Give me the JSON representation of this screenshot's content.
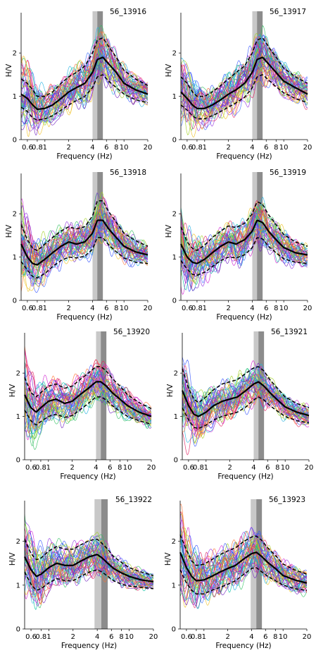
{
  "figure": {
    "panel_count": 8,
    "colors": {
      "individual_curves": [
        "#d020d0",
        "#9030e0",
        "#3050ff",
        "#20b0e0",
        "#30c060",
        "#a0d020",
        "#f0c020",
        "#ff7030",
        "#e02060",
        "#7020c0",
        "#00c0a0",
        "#4070ff"
      ],
      "mean_curve": "#000000",
      "std_curves": "#000000",
      "peak_band_outer": "#c8c8c8",
      "peak_band_inner": "#8c8c8c"
    }
  },
  "chart_data": [
    {
      "type": "line",
      "title": "56_13916",
      "xlabel": "Frequency (Hz)",
      "ylabel": "H/V",
      "x_scale": "log",
      "xlim": [
        0.5,
        20
      ],
      "ylim": [
        0,
        2.8
      ],
      "xticks": [
        "0.6",
        "0.8",
        "1",
        "2",
        "4",
        "6",
        "8",
        "10",
        "20"
      ],
      "yticks": [
        "0",
        "1",
        "2"
      ],
      "peak_band_hz": [
        4.0,
        5.4
      ],
      "peak_band_inner_hz": [
        4.6,
        5.4
      ],
      "series": [
        {
          "values": [
            1.05,
            0.95,
            0.8,
            0.7,
            0.72,
            0.8,
            0.95,
            1.1,
            1.2,
            1.3,
            1.55,
            1.85,
            1.9,
            1.75,
            1.55,
            1.3,
            1.15,
            1.05
          ],
          "style": "mean"
        },
        {
          "values": [
            1.4,
            1.3,
            1.15,
            1.0,
            1.0,
            1.1,
            1.3,
            1.45,
            1.55,
            1.7,
            2.0,
            2.3,
            2.35,
            2.15,
            1.9,
            1.6,
            1.4,
            1.25
          ],
          "style": "std-upper"
        },
        {
          "values": [
            0.75,
            0.65,
            0.5,
            0.45,
            0.48,
            0.55,
            0.68,
            0.8,
            0.9,
            1.0,
            1.2,
            1.45,
            1.5,
            1.35,
            1.2,
            1.05,
            0.92,
            0.85
          ],
          "style": "std-lower"
        }
      ]
    },
    {
      "type": "line",
      "title": "56_13917",
      "xlabel": "Frequency (Hz)",
      "ylabel": "H/V",
      "x_scale": "log",
      "xlim": [
        0.5,
        20
      ],
      "ylim": [
        0,
        2.8
      ],
      "xticks": [
        "0.6",
        "0.8",
        "1",
        "2",
        "4",
        "6",
        "8",
        "10",
        "20"
      ],
      "yticks": [
        "0",
        "1",
        "2"
      ],
      "peak_band_hz": [
        4.0,
        5.4
      ],
      "peak_band_inner_hz": [
        4.6,
        5.4
      ],
      "series": [
        {
          "values": [
            1.1,
            0.95,
            0.8,
            0.72,
            0.72,
            0.8,
            0.92,
            1.05,
            1.15,
            1.3,
            1.55,
            1.85,
            1.9,
            1.75,
            1.55,
            1.35,
            1.2,
            1.05
          ],
          "style": "mean"
        },
        {
          "values": [
            1.45,
            1.3,
            1.1,
            1.0,
            1.0,
            1.1,
            1.25,
            1.4,
            1.55,
            1.7,
            2.0,
            2.3,
            2.35,
            2.15,
            1.9,
            1.65,
            1.45,
            1.3
          ],
          "style": "std-upper"
        },
        {
          "values": [
            0.8,
            0.68,
            0.55,
            0.48,
            0.48,
            0.55,
            0.65,
            0.75,
            0.85,
            0.98,
            1.2,
            1.45,
            1.5,
            1.38,
            1.22,
            1.08,
            0.95,
            0.85
          ],
          "style": "std-lower"
        }
      ]
    },
    {
      "type": "line",
      "title": "56_13918",
      "xlabel": "Frequency (Hz)",
      "ylabel": "H/V",
      "x_scale": "log",
      "xlim": [
        0.5,
        20
      ],
      "ylim": [
        0,
        2.8
      ],
      "xticks": [
        "0.6",
        "0.8",
        "1",
        "2",
        "4",
        "6",
        "8",
        "10",
        "20"
      ],
      "yticks": [
        "0",
        "1",
        "2"
      ],
      "peak_band_hz": [
        4.0,
        5.4
      ],
      "peak_band_inner_hz": [
        4.6,
        5.4
      ],
      "series": [
        {
          "values": [
            1.3,
            1.0,
            0.85,
            0.82,
            0.95,
            1.1,
            1.25,
            1.35,
            1.3,
            1.35,
            1.55,
            1.85,
            1.85,
            1.65,
            1.45,
            1.25,
            1.12,
            1.05
          ],
          "style": "mean"
        },
        {
          "values": [
            1.75,
            1.4,
            1.2,
            1.15,
            1.3,
            1.45,
            1.6,
            1.7,
            1.65,
            1.7,
            1.95,
            2.3,
            2.3,
            2.05,
            1.8,
            1.55,
            1.38,
            1.25
          ],
          "style": "std-upper"
        },
        {
          "values": [
            0.9,
            0.7,
            0.55,
            0.52,
            0.62,
            0.78,
            0.92,
            1.0,
            0.98,
            1.02,
            1.18,
            1.45,
            1.45,
            1.28,
            1.12,
            0.98,
            0.88,
            0.85
          ],
          "style": "std-lower"
        }
      ]
    },
    {
      "type": "line",
      "title": "56_13919",
      "xlabel": "Frequency (Hz)",
      "ylabel": "H/V",
      "x_scale": "log",
      "xlim": [
        0.5,
        20
      ],
      "ylim": [
        0,
        2.8
      ],
      "xticks": [
        "0.6",
        "0.8",
        "1",
        "2",
        "4",
        "6",
        "8",
        "10",
        "20"
      ],
      "yticks": [
        "0",
        "1",
        "2"
      ],
      "peak_band_hz": [
        4.0,
        5.4
      ],
      "peak_band_inner_hz": [
        4.6,
        5.4
      ],
      "series": [
        {
          "values": [
            1.3,
            1.0,
            0.88,
            0.85,
            0.95,
            1.1,
            1.25,
            1.35,
            1.3,
            1.4,
            1.6,
            1.85,
            1.8,
            1.6,
            1.4,
            1.22,
            1.1,
            1.05
          ],
          "style": "mean"
        },
        {
          "values": [
            1.7,
            1.35,
            1.2,
            1.15,
            1.28,
            1.45,
            1.6,
            1.72,
            1.68,
            1.78,
            2.0,
            2.28,
            2.22,
            1.98,
            1.75,
            1.52,
            1.35,
            1.25
          ],
          "style": "std-upper"
        },
        {
          "values": [
            0.92,
            0.72,
            0.6,
            0.58,
            0.65,
            0.78,
            0.92,
            1.0,
            0.98,
            1.05,
            1.22,
            1.45,
            1.42,
            1.25,
            1.1,
            0.96,
            0.88,
            0.85
          ],
          "style": "std-lower"
        }
      ]
    },
    {
      "type": "line",
      "title": "56_13920",
      "xlabel": "Frequency (Hz)",
      "ylabel": "H/V",
      "x_scale": "log",
      "xlim": [
        0.5,
        20
      ],
      "ylim": [
        0,
        2.8
      ],
      "xticks": [
        "0.6",
        "0.8",
        "1",
        "2",
        "4",
        "6",
        "8",
        "10",
        "20"
      ],
      "yticks": [
        "0",
        "1",
        "2"
      ],
      "peak_band_hz": [
        4.0,
        5.4
      ],
      "peak_band_inner_hz": [
        4.6,
        5.4
      ],
      "series": [
        {
          "values": [
            1.5,
            1.2,
            1.1,
            1.2,
            1.35,
            1.4,
            1.3,
            1.35,
            1.5,
            1.65,
            1.8,
            1.8,
            1.7,
            1.55,
            1.4,
            1.25,
            1.1,
            1.0
          ],
          "style": "mean"
        },
        {
          "values": [
            1.9,
            1.55,
            1.45,
            1.55,
            1.7,
            1.75,
            1.65,
            1.7,
            1.85,
            2.0,
            2.15,
            2.15,
            2.05,
            1.88,
            1.7,
            1.5,
            1.32,
            1.18
          ],
          "style": "std-upper"
        },
        {
          "values": [
            1.15,
            0.9,
            0.8,
            0.88,
            1.0,
            1.05,
            0.98,
            1.02,
            1.15,
            1.3,
            1.45,
            1.45,
            1.38,
            1.25,
            1.12,
            1.0,
            0.9,
            0.82
          ],
          "style": "std-lower"
        }
      ]
    },
    {
      "type": "line",
      "title": "56_13921",
      "xlabel": "Frequency (Hz)",
      "ylabel": "H/V",
      "x_scale": "log",
      "xlim": [
        0.5,
        20
      ],
      "ylim": [
        0,
        2.8
      ],
      "xticks": [
        "0.6",
        "0.8",
        "1",
        "2",
        "4",
        "6",
        "8",
        "10",
        "20"
      ],
      "yticks": [
        "0",
        "1",
        "2"
      ],
      "peak_band_hz": [
        4.0,
        5.4
      ],
      "peak_band_inner_hz": [
        4.6,
        5.4
      ],
      "series": [
        {
          "values": [
            1.6,
            1.25,
            1.05,
            1.0,
            1.1,
            1.25,
            1.35,
            1.4,
            1.45,
            1.6,
            1.75,
            1.8,
            1.7,
            1.55,
            1.38,
            1.22,
            1.1,
            1.02
          ],
          "style": "mean"
        },
        {
          "values": [
            2.1,
            1.65,
            1.4,
            1.32,
            1.45,
            1.62,
            1.75,
            1.8,
            1.85,
            2.0,
            2.12,
            2.15,
            2.05,
            1.85,
            1.65,
            1.45,
            1.3,
            1.2
          ],
          "style": "std-upper"
        },
        {
          "values": [
            1.2,
            0.92,
            0.75,
            0.72,
            0.8,
            0.92,
            1.0,
            1.05,
            1.1,
            1.22,
            1.38,
            1.45,
            1.38,
            1.25,
            1.12,
            1.0,
            0.9,
            0.85
          ],
          "style": "std-lower"
        }
      ]
    },
    {
      "type": "line",
      "title": "56_13922",
      "xlabel": "Frequency (Hz)",
      "ylabel": "H/V",
      "x_scale": "log",
      "xlim": [
        0.5,
        20
      ],
      "ylim": [
        0,
        2.8
      ],
      "xticks": [
        "0.6",
        "0.8",
        "1",
        "2",
        "4",
        "6",
        "8",
        "10",
        "20"
      ],
      "yticks": [
        "0",
        "1",
        "2"
      ],
      "peak_band_hz": [
        3.7,
        5.4
      ],
      "peak_band_inner_hz": [
        4.5,
        5.4
      ],
      "series": [
        {
          "values": [
            1.65,
            1.35,
            1.2,
            1.25,
            1.4,
            1.5,
            1.45,
            1.45,
            1.55,
            1.65,
            1.7,
            1.62,
            1.5,
            1.38,
            1.28,
            1.2,
            1.12,
            1.08
          ],
          "style": "mean"
        },
        {
          "values": [
            2.05,
            1.72,
            1.58,
            1.62,
            1.78,
            1.88,
            1.82,
            1.82,
            1.92,
            2.02,
            2.05,
            1.95,
            1.82,
            1.65,
            1.52,
            1.4,
            1.3,
            1.22
          ],
          "style": "std-upper"
        },
        {
          "values": [
            1.3,
            1.02,
            0.88,
            0.92,
            1.05,
            1.15,
            1.1,
            1.1,
            1.2,
            1.3,
            1.35,
            1.3,
            1.2,
            1.1,
            1.02,
            0.98,
            0.95,
            0.92
          ],
          "style": "std-lower"
        }
      ]
    },
    {
      "type": "line",
      "title": "56_13923",
      "xlabel": "Frequency (Hz)",
      "ylabel": "H/V",
      "x_scale": "log",
      "xlim": [
        0.5,
        20
      ],
      "ylim": [
        0,
        2.8
      ],
      "xticks": [
        "0.6",
        "0.8",
        "1",
        "2",
        "4",
        "6",
        "8",
        "10",
        "20"
      ],
      "yticks": [
        "0",
        "1",
        "2"
      ],
      "peak_band_hz": [
        3.9,
        5.4
      ],
      "peak_band_inner_hz": [
        4.6,
        5.4
      ],
      "series": [
        {
          "values": [
            1.75,
            1.4,
            1.2,
            1.1,
            1.12,
            1.2,
            1.3,
            1.38,
            1.45,
            1.6,
            1.72,
            1.75,
            1.65,
            1.52,
            1.38,
            1.22,
            1.12,
            1.05
          ],
          "style": "mean"
        },
        {
          "values": [
            2.15,
            1.8,
            1.55,
            1.45,
            1.48,
            1.58,
            1.7,
            1.78,
            1.85,
            2.0,
            2.1,
            2.12,
            2.02,
            1.85,
            1.68,
            1.48,
            1.35,
            1.25
          ],
          "style": "std-upper"
        },
        {
          "values": [
            1.35,
            1.05,
            0.88,
            0.8,
            0.8,
            0.88,
            0.95,
            1.02,
            1.1,
            1.25,
            1.38,
            1.4,
            1.3,
            1.2,
            1.1,
            1.0,
            0.92,
            0.88
          ],
          "style": "std-lower"
        }
      ]
    }
  ]
}
